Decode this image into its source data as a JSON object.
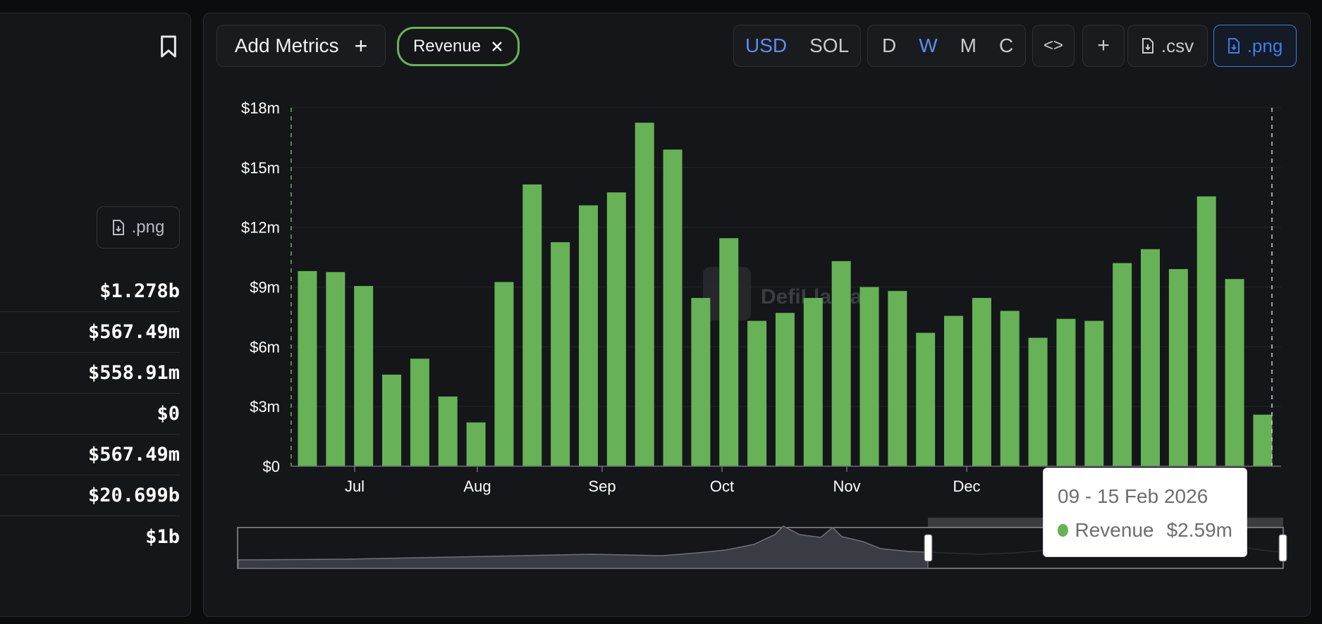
{
  "left_panel": {
    "png_label": ".png",
    "stats": [
      "$1.278b",
      "$567.49m",
      "$558.91m",
      "$0",
      "$567.49m",
      "$20.699b",
      "$1b"
    ]
  },
  "toolbar": {
    "add_metrics_label": "Add Metrics",
    "revenue_chip_label": "Revenue",
    "currency_options": [
      "USD",
      "SOL"
    ],
    "currency_selected": "USD",
    "interval_options": [
      "D",
      "W",
      "M",
      "C"
    ],
    "interval_selected": "W",
    "embed_label": "<>",
    "plus_label": "+",
    "csv_label": ".csv",
    "png_label": ".png"
  },
  "tooltip": {
    "date": "09 - 15 Feb 2026",
    "series": "Revenue",
    "value": "$2.59m"
  },
  "colors": {
    "bar": "#67b157",
    "accent": "#5c8ef0"
  },
  "watermark": "DefiLlama",
  "chart_data": {
    "type": "bar",
    "title": "",
    "xlabel": "",
    "ylabel": "",
    "ylim": [
      0,
      18
    ],
    "y_unit": "$m",
    "y_ticks": [
      "$0",
      "$3m",
      "$6m",
      "$9m",
      "$12m",
      "$15m",
      "$18m"
    ],
    "x_ticks": [
      "Jul",
      "Aug",
      "Sep",
      "Oct",
      "Nov",
      "Dec"
    ],
    "series": [
      {
        "values": [
          9.8,
          9.75,
          9.05,
          4.6,
          5.4,
          3.5,
          2.2,
          9.25,
          14.15,
          11.25,
          13.1,
          13.75,
          17.25,
          15.9,
          8.45,
          11.45,
          7.3,
          7.7,
          8.45,
          10.3,
          9.0,
          8.8,
          6.7,
          7.55,
          8.45,
          7.8,
          6.45,
          7.4,
          7.3,
          10.2,
          10.9,
          9.9,
          13.55,
          9.4,
          2.59
        ]
      }
    ],
    "grid": true,
    "legend": "none"
  }
}
